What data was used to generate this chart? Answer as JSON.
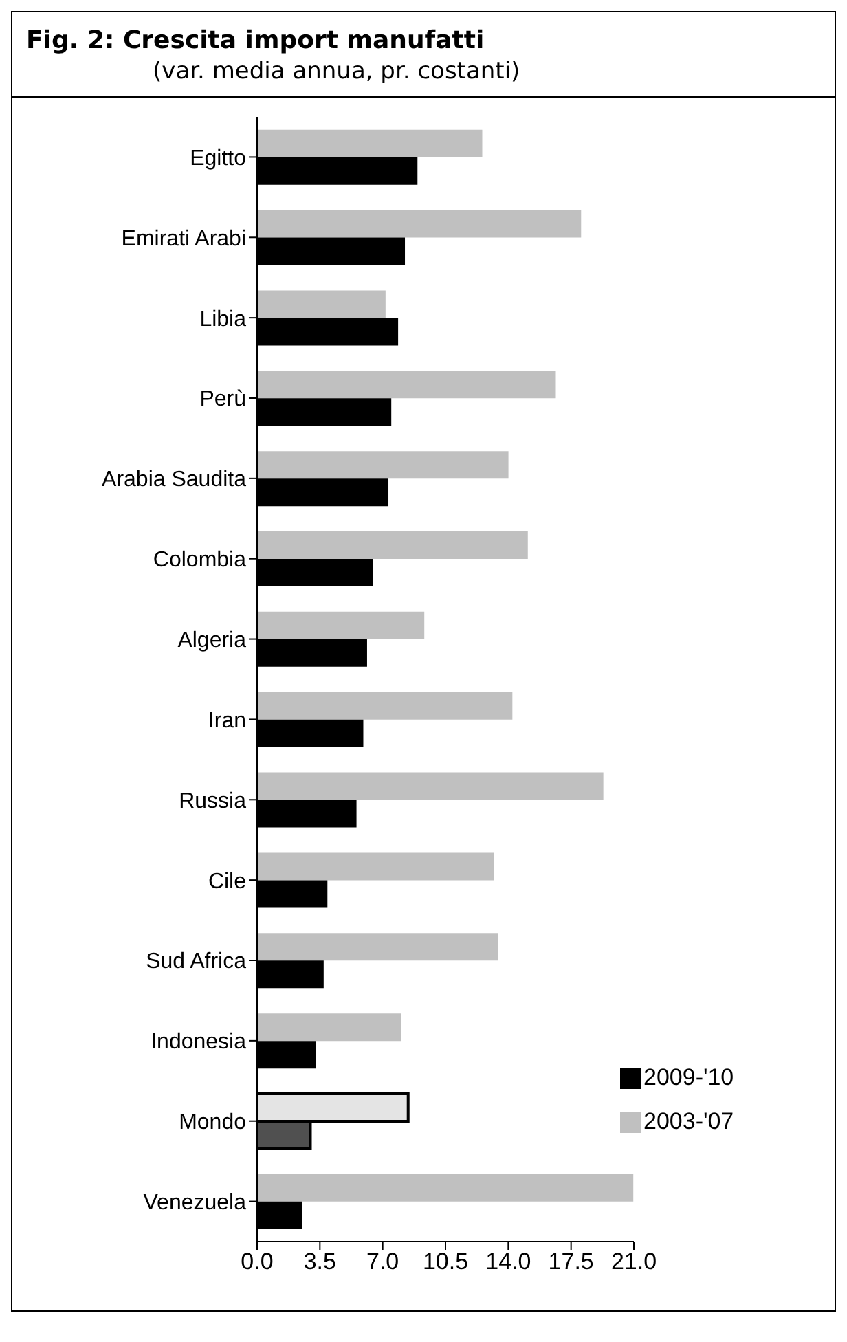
{
  "chart_data": {
    "type": "bar",
    "orientation": "horizontal",
    "title": "Fig. 2: Crescita import manufatti",
    "subtitle": "(var. media annua, pr. costanti)",
    "categories": [
      "Egitto",
      "Emirati Arabi",
      "Libia",
      "Perù",
      "Arabia Saudita",
      "Colombia",
      "Algeria",
      "Iran",
      "Russia",
      "Cile",
      "Sud Africa",
      "Indonesia",
      "Mondo",
      "Venezuela"
    ],
    "series": [
      {
        "name": "2003-'07",
        "color": "#c0c0c0",
        "colors": [
          "#c0c0c0",
          "#c0c0c0",
          "#c0c0c0",
          "#c0c0c0",
          "#c0c0c0",
          "#c0c0c0",
          "#c0c0c0",
          "#c0c0c0",
          "#c0c0c0",
          "#c0c0c0",
          "#c0c0c0",
          "#c0c0c0",
          "#e4e4e4",
          "#c0c0c0"
        ],
        "values": [
          12.55,
          18.06,
          7.16,
          16.65,
          14.01,
          15.09,
          9.32,
          14.23,
          19.3,
          13.2,
          13.42,
          8.02,
          8.42,
          20.97
        ]
      },
      {
        "name": "2009-'10",
        "color": "#000000",
        "colors": [
          "#000000",
          "#000000",
          "#000000",
          "#000000",
          "#000000",
          "#000000",
          "#000000",
          "#000000",
          "#000000",
          "#000000",
          "#000000",
          "#000000",
          "#505050",
          "#000000"
        ],
        "values": [
          8.94,
          8.24,
          7.86,
          7.48,
          7.32,
          6.46,
          6.13,
          5.92,
          5.54,
          3.92,
          3.71,
          3.27,
          2.97,
          2.52
        ]
      }
    ],
    "xlim": [
      0,
      21
    ],
    "xticks": [
      {
        "value": 0,
        "label": "0.0"
      },
      3.5,
      {
        "value": 7,
        "label": "7.0"
      },
      10.5,
      {
        "value": 14,
        "label": "14.0"
      },
      17.5,
      {
        "value": 21,
        "label": "21.0"
      }
    ],
    "grid": false,
    "legend": "bottom right"
  }
}
